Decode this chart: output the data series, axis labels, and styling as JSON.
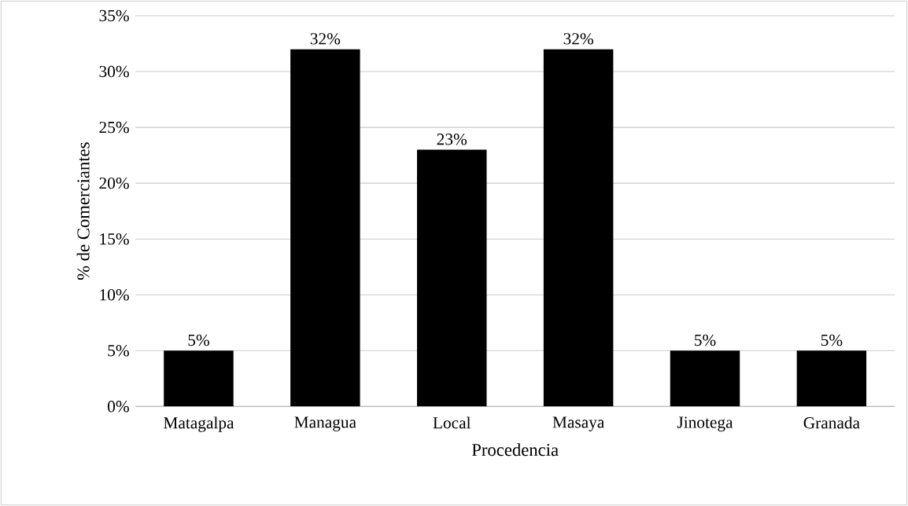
{
  "chart_data": {
    "type": "bar",
    "xlabel": "Procedencia",
    "ylabel": "% de Comerciantes",
    "categories": [
      "Matagalpa",
      "Managua",
      "Local",
      "Masaya",
      "Jinotega",
      "Granada"
    ],
    "values": [
      5,
      32,
      23,
      32,
      5,
      5
    ],
    "value_labels": [
      "5%",
      "32%",
      "23%",
      "32%",
      "5%",
      "5%"
    ],
    "color": "#000000",
    "ylim": [
      0,
      35
    ],
    "yticks": [
      {
        "value": 0,
        "label": "0%"
      },
      {
        "value": 5,
        "label": "5%"
      },
      {
        "value": 10,
        "label": "10%"
      },
      {
        "value": 15,
        "label": "15%"
      },
      {
        "value": 20,
        "label": "20%"
      },
      {
        "value": 25,
        "label": "25%"
      },
      {
        "value": 30,
        "label": "30%"
      },
      {
        "value": 35,
        "label": "35%"
      }
    ],
    "grid": "y"
  }
}
